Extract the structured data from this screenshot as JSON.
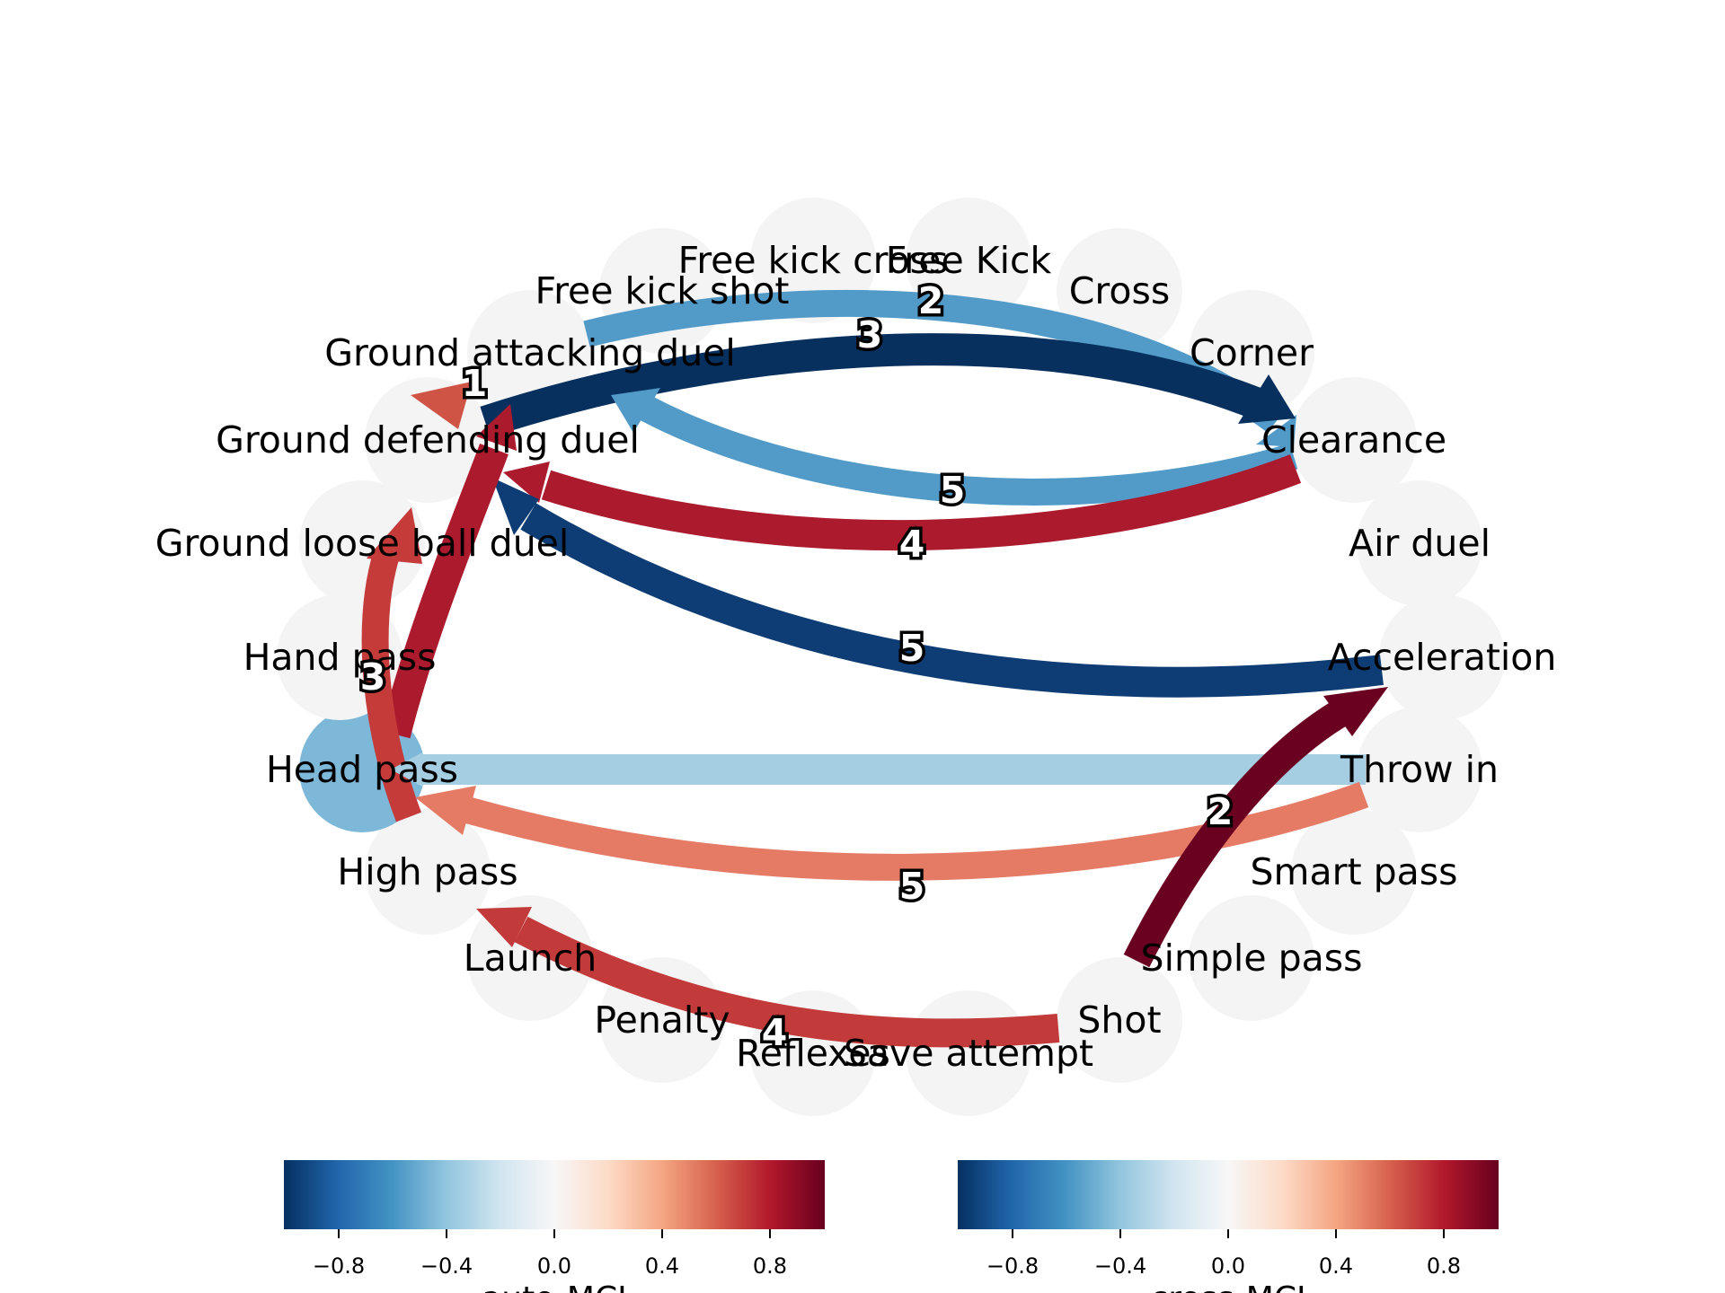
{
  "diagram": {
    "nodes": [
      {
        "id": "free_kick_cross",
        "label": "Free kick cross"
      },
      {
        "id": "free_kick",
        "label": "Free Kick"
      },
      {
        "id": "cross",
        "label": "Cross"
      },
      {
        "id": "corner",
        "label": "Corner"
      },
      {
        "id": "clearance",
        "label": "Clearance"
      },
      {
        "id": "air_duel",
        "label": "Air duel"
      },
      {
        "id": "acceleration",
        "label": "Acceleration"
      },
      {
        "id": "throw_in",
        "label": "Throw in"
      },
      {
        "id": "smart_pass",
        "label": "Smart pass"
      },
      {
        "id": "simple_pass",
        "label": "Simple pass"
      },
      {
        "id": "shot",
        "label": "Shot"
      },
      {
        "id": "save_attempt",
        "label": "Save attempt"
      },
      {
        "id": "reflexes",
        "label": "Reflexes"
      },
      {
        "id": "penalty",
        "label": "Penalty"
      },
      {
        "id": "launch",
        "label": "Launch"
      },
      {
        "id": "high_pass",
        "label": "High pass"
      },
      {
        "id": "head_pass",
        "label": "Head pass"
      },
      {
        "id": "hand_pass",
        "label": "Hand pass"
      },
      {
        "id": "ground_loose_ball_duel",
        "label": "Ground loose ball duel"
      },
      {
        "id": "ground_defending_duel",
        "label": "Ground defending duel"
      },
      {
        "id": "ground_attacking_duel",
        "label": "Ground attacking duel"
      },
      {
        "id": "free_kick_shot",
        "label": "Free kick shot"
      }
    ],
    "highlighted_node": {
      "id": "head_pass",
      "color": "#7db8d8"
    },
    "edges": [
      {
        "id": "e1",
        "label": "1",
        "from": "ground_attacking_duel",
        "to": "ground_defending_duel",
        "color": "#cf5446"
      },
      {
        "id": "e2",
        "label": "2",
        "from": "free_kick_shot",
        "to": "clearance",
        "color": "#529bc8"
      },
      {
        "id": "e3",
        "label": "3",
        "from": "ground_defending_duel",
        "to": "clearance",
        "color": "#08305e"
      },
      {
        "id": "e4",
        "label": "5",
        "from": "clearance",
        "to": "ground_attacking_duel",
        "color": "#529bc8"
      },
      {
        "id": "e5",
        "label": "4",
        "from": "clearance",
        "to": "ground_defending_duel",
        "color": "#ac1a2d"
      },
      {
        "id": "e6",
        "label": "5",
        "from": "acceleration",
        "to": "ground_defending_duel",
        "color": "#0d3d74"
      },
      {
        "id": "e7",
        "label": "3",
        "from": "high_pass",
        "to": "ground_defending_duel",
        "color": "#ac1a2d"
      },
      {
        "id": "e8",
        "label": "3",
        "from": "head_pass",
        "to": "ground_loose_ball_duel",
        "color": "#c43b3a"
      },
      {
        "id": "e9",
        "label": "",
        "from": "throw_in",
        "to": "head_pass",
        "color": "#a6cee3"
      },
      {
        "id": "e10",
        "label": "5",
        "from": "throw_in",
        "to": "high_pass",
        "color": "#e57b64"
      },
      {
        "id": "e11",
        "label": "2",
        "from": "simple_pass",
        "to": "acceleration",
        "color": "#6b0120"
      },
      {
        "id": "e12",
        "label": "4",
        "from": "save_attempt",
        "to": "high_pass",
        "color": "#c33a3a"
      }
    ]
  },
  "colorbars": [
    {
      "title": "auto-MCI",
      "ticks": [
        "−0.8",
        "−0.4",
        "0.0",
        "0.4",
        "0.8"
      ],
      "range": [
        -1,
        1
      ],
      "tick_values": [
        -0.8,
        -0.4,
        0.0,
        0.4,
        0.8
      ]
    },
    {
      "title": "cross-MCI",
      "ticks": [
        "−0.8",
        "−0.4",
        "0.0",
        "0.4",
        "0.8"
      ],
      "range": [
        -1,
        1
      ],
      "tick_values": [
        -0.8,
        -0.4,
        0.0,
        0.4,
        0.8
      ]
    }
  ],
  "colormap": {
    "name": "RdBu_r",
    "stops": [
      "#053061",
      "#2166ac",
      "#4393c3",
      "#92c5de",
      "#d1e5f0",
      "#f7f7f7",
      "#fddbc7",
      "#f4a582",
      "#d6604d",
      "#b2182b",
      "#67001f"
    ]
  }
}
